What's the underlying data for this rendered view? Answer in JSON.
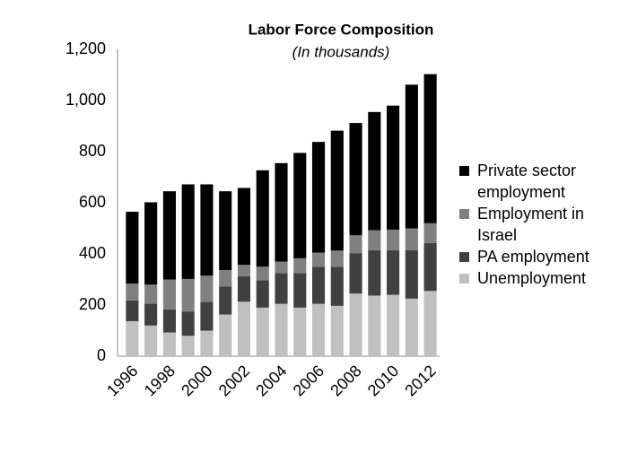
{
  "chart_data": {
    "type": "stacked-bar",
    "title": "Labor Force Composition",
    "subtitle": "(In thousands)",
    "categories": [
      "1996",
      null,
      "1998",
      null,
      "2000",
      null,
      "2002",
      null,
      "2004",
      null,
      "2006",
      null,
      "2008",
      null,
      "2010",
      null,
      "2012"
    ],
    "series": [
      {
        "name": "Unemployment",
        "color": "#c0c0c0",
        "values": [
          137,
          120,
          93,
          80,
          100,
          163,
          213,
          190,
          205,
          190,
          205,
          197,
          245,
          237,
          240,
          225,
          255
        ]
      },
      {
        "name": "PA employment",
        "color": "#404040",
        "values": [
          81,
          85,
          90,
          95,
          112,
          109,
          100,
          107,
          120,
          135,
          145,
          153,
          158,
          178,
          175,
          190,
          188
        ]
      },
      {
        "name": "Employment in Israel",
        "color": "#808080",
        "values": [
          66,
          75,
          117,
          127,
          103,
          65,
          44,
          53,
          45,
          58,
          55,
          63,
          70,
          78,
          80,
          85,
          77
        ]
      },
      {
        "name": "Private sector employment",
        "color": "#000000",
        "values": [
          281,
          322,
          345,
          370,
          357,
          308,
          301,
          377,
          385,
          412,
          433,
          469,
          439,
          462,
          485,
          562,
          583
        ]
      }
    ],
    "ylim": [
      0,
      1200
    ],
    "yticks": [
      0,
      200,
      400,
      600,
      800,
      {
        "value": 1000,
        "label": "1,000"
      },
      {
        "value": 1200,
        "label": "1,200"
      }
    ]
  }
}
